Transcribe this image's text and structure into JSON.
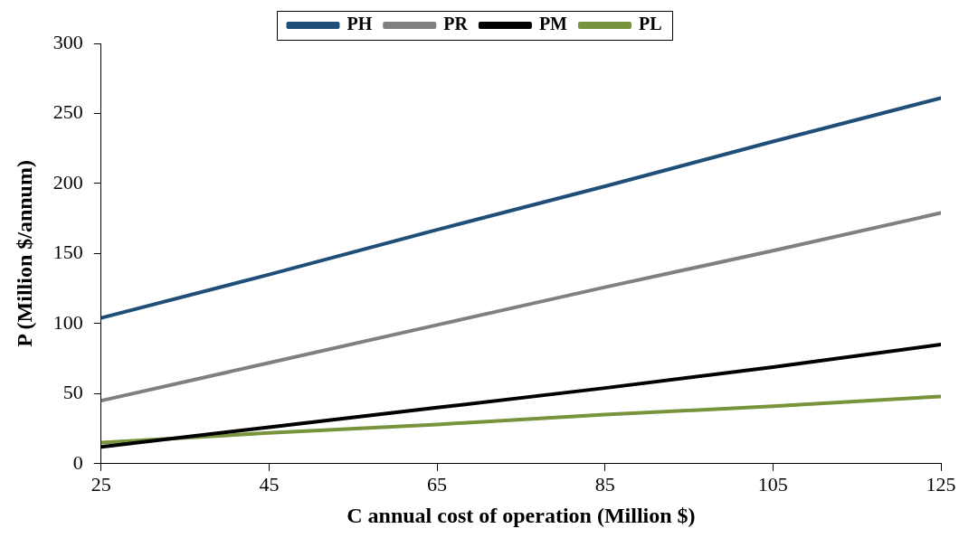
{
  "chart_data": {
    "type": "line",
    "xlabel": "C annual cost of operation (Million $)",
    "ylabel": "P (Million $/annum)",
    "x": [
      25,
      45,
      65,
      85,
      105,
      125
    ],
    "series": [
      {
        "name": "PH",
        "color": "#1f4e79",
        "values": [
          104,
          135,
          167,
          198,
          230,
          261
        ]
      },
      {
        "name": "PR",
        "color": "#808080",
        "values": [
          45,
          72,
          99,
          126,
          152,
          179
        ]
      },
      {
        "name": "PM",
        "color": "#000000",
        "values": [
          12,
          26,
          40,
          54,
          69,
          85
        ]
      },
      {
        "name": "PL",
        "color": "#77933c",
        "values": [
          15,
          22,
          28,
          35,
          41,
          48
        ]
      }
    ],
    "xlim": [
      25,
      125
    ],
    "xticks": [
      25,
      45,
      65,
      85,
      105,
      125
    ],
    "ylim": [
      0,
      300
    ],
    "yticks": [
      0,
      50,
      100,
      150,
      200,
      250,
      300
    ],
    "grid": false,
    "legend": "top",
    "marker": "none",
    "line_style": "solid"
  }
}
